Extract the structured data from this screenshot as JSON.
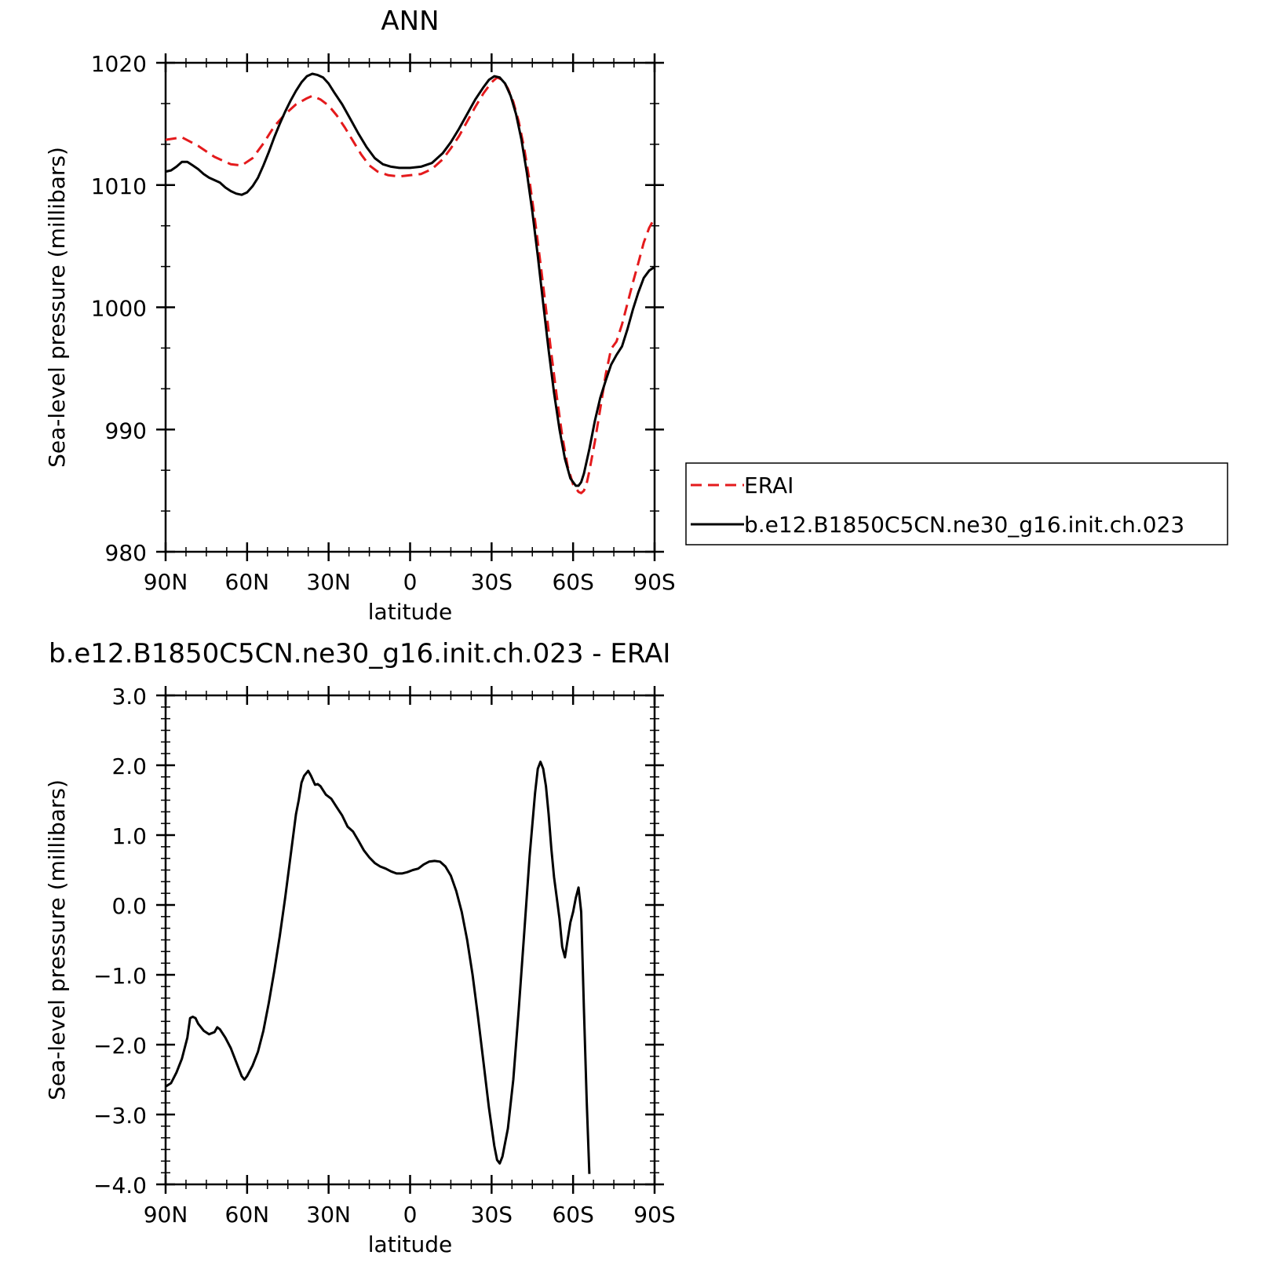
{
  "chart_data": [
    {
      "type": "line",
      "title": "ANN",
      "xlabel": "latitude",
      "ylabel": "Sea-level pressure (millibars)",
      "xlim": [
        90,
        -90
      ],
      "ylim": [
        980,
        1020
      ],
      "x_ticks": [
        {
          "value": 90,
          "label": "90N"
        },
        {
          "value": 60,
          "label": "60N"
        },
        {
          "value": 30,
          "label": "30N"
        },
        {
          "value": 0,
          "label": "0"
        },
        {
          "value": -30,
          "label": "30S"
        },
        {
          "value": -60,
          "label": "60S"
        },
        {
          "value": -90,
          "label": "90S"
        }
      ],
      "y_ticks": [
        {
          "value": 980,
          "label": "980"
        },
        {
          "value": 990,
          "label": "990"
        },
        {
          "value": 1000,
          "label": "1000"
        },
        {
          "value": 1010,
          "label": "1010"
        },
        {
          "value": 1020,
          "label": "1020"
        }
      ],
      "legend_position": "right",
      "series": [
        {
          "name": "ERAI",
          "color": "#e41a1c",
          "dash": true,
          "points": [
            [
              90,
              1013.7
            ],
            [
              84,
              1013.9
            ],
            [
              78,
              1013.2
            ],
            [
              72,
              1012.3
            ],
            [
              66,
              1011.7
            ],
            [
              62,
              1011.6
            ],
            [
              58,
              1012.2
            ],
            [
              54,
              1013.4
            ],
            [
              50,
              1014.8
            ],
            [
              46,
              1015.8
            ],
            [
              42,
              1016.6
            ],
            [
              38,
              1017.1
            ],
            [
              36,
              1017.3
            ],
            [
              33,
              1017.0
            ],
            [
              30,
              1016.5
            ],
            [
              27,
              1015.7
            ],
            [
              24,
              1014.7
            ],
            [
              21,
              1013.6
            ],
            [
              18,
              1012.5
            ],
            [
              15,
              1011.6
            ],
            [
              12,
              1011.1
            ],
            [
              8,
              1010.8
            ],
            [
              4,
              1010.7
            ],
            [
              0,
              1010.8
            ],
            [
              -4,
              1010.9
            ],
            [
              -8,
              1011.3
            ],
            [
              -12,
              1012.1
            ],
            [
              -15,
              1013.0
            ],
            [
              -18,
              1014.0
            ],
            [
              -21,
              1015.2
            ],
            [
              -24,
              1016.4
            ],
            [
              -27,
              1017.5
            ],
            [
              -30,
              1018.4
            ],
            [
              -32,
              1018.8
            ],
            [
              -34,
              1018.6
            ],
            [
              -36,
              1017.9
            ],
            [
              -38,
              1016.8
            ],
            [
              -40,
              1015.2
            ],
            [
              -42,
              1013.0
            ],
            [
              -44,
              1010.3
            ],
            [
              -46,
              1007.1
            ],
            [
              -48,
              1003.6
            ],
            [
              -50,
              999.9
            ],
            [
              -52,
              996.2
            ],
            [
              -54,
              992.7
            ],
            [
              -56,
              989.5
            ],
            [
              -58,
              987.0
            ],
            [
              -60,
              985.5
            ],
            [
              -62,
              984.9
            ],
            [
              -63,
              984.8
            ],
            [
              -64,
              985.0
            ],
            [
              -65,
              985.6
            ],
            [
              -66,
              986.6
            ],
            [
              -68,
              989.0
            ],
            [
              -70,
              991.7
            ],
            [
              -72,
              994.5
            ],
            [
              -74,
              996.6
            ],
            [
              -76,
              997.2
            ],
            [
              -78,
              998.6
            ],
            [
              -80,
              1000.3
            ],
            [
              -82,
              1002.0
            ],
            [
              -84,
              1003.6
            ],
            [
              -86,
              1005.3
            ],
            [
              -88,
              1006.5
            ],
            [
              -90,
              1007.3
            ]
          ]
        },
        {
          "name": "b.e12.B1850C5CN.ne30_g16.init.ch.023",
          "color": "#000000",
          "dash": false,
          "points": [
            [
              90,
              1011.1
            ],
            [
              88,
              1011.2
            ],
            [
              86,
              1011.5
            ],
            [
              84,
              1011.9
            ],
            [
              82,
              1011.9
            ],
            [
              80,
              1011.6
            ],
            [
              78,
              1011.3
            ],
            [
              76,
              1010.9
            ],
            [
              74,
              1010.6
            ],
            [
              72,
              1010.4
            ],
            [
              70,
              1010.2
            ],
            [
              68,
              1009.8
            ],
            [
              66,
              1009.5
            ],
            [
              64,
              1009.3
            ],
            [
              62,
              1009.2
            ],
            [
              60,
              1009.4
            ],
            [
              58,
              1009.9
            ],
            [
              56,
              1010.6
            ],
            [
              54,
              1011.6
            ],
            [
              52,
              1012.7
            ],
            [
              50,
              1013.9
            ],
            [
              48,
              1015.0
            ],
            [
              46,
              1016.0
            ],
            [
              44,
              1016.9
            ],
            [
              42,
              1017.7
            ],
            [
              40,
              1018.4
            ],
            [
              38,
              1018.9
            ],
            [
              36,
              1019.1
            ],
            [
              34,
              1019.0
            ],
            [
              32,
              1018.8
            ],
            [
              30,
              1018.3
            ],
            [
              28,
              1017.6
            ],
            [
              25,
              1016.6
            ],
            [
              22,
              1015.4
            ],
            [
              19,
              1014.2
            ],
            [
              16,
              1013.1
            ],
            [
              13,
              1012.2
            ],
            [
              10,
              1011.7
            ],
            [
              7,
              1011.5
            ],
            [
              4,
              1011.4
            ],
            [
              0,
              1011.4
            ],
            [
              -4,
              1011.5
            ],
            [
              -8,
              1011.8
            ],
            [
              -12,
              1012.6
            ],
            [
              -15,
              1013.5
            ],
            [
              -18,
              1014.6
            ],
            [
              -21,
              1015.8
            ],
            [
              -24,
              1017.0
            ],
            [
              -27,
              1018.0
            ],
            [
              -29,
              1018.6
            ],
            [
              -31,
              1018.9
            ],
            [
              -33,
              1018.8
            ],
            [
              -35,
              1018.3
            ],
            [
              -37,
              1017.3
            ],
            [
              -39,
              1015.8
            ],
            [
              -41,
              1013.7
            ],
            [
              -43,
              1011.0
            ],
            [
              -45,
              1007.8
            ],
            [
              -47,
              1004.2
            ],
            [
              -49,
              1000.3
            ],
            [
              -51,
              996.5
            ],
            [
              -53,
              993.0
            ],
            [
              -55,
              990.0
            ],
            [
              -57,
              987.6
            ],
            [
              -59,
              986.0
            ],
            [
              -61,
              985.4
            ],
            [
              -62,
              985.4
            ],
            [
              -63,
              985.7
            ],
            [
              -64,
              986.4
            ],
            [
              -66,
              988.4
            ],
            [
              -68,
              990.7
            ],
            [
              -70,
              992.6
            ],
            [
              -72,
              994.0
            ],
            [
              -74,
              995.3
            ],
            [
              -76,
              996.1
            ],
            [
              -78,
              996.8
            ],
            [
              -80,
              998.2
            ],
            [
              -82,
              999.8
            ],
            [
              -84,
              1001.2
            ],
            [
              -86,
              1002.4
            ],
            [
              -88,
              1003.0
            ],
            [
              -90,
              1003.3
            ]
          ]
        }
      ]
    },
    {
      "type": "line",
      "title": "b.e12.B1850C5CN.ne30_g16.init.ch.023  -  ERAI",
      "xlabel": "latitude",
      "ylabel": "Sea-level pressure (millibars)",
      "xlim": [
        90,
        -90
      ],
      "ylim": [
        -4.0,
        3.0
      ],
      "x_ticks": [
        {
          "value": 90,
          "label": "90N"
        },
        {
          "value": 60,
          "label": "60N"
        },
        {
          "value": 30,
          "label": "30N"
        },
        {
          "value": 0,
          "label": "0"
        },
        {
          "value": -30,
          "label": "30S"
        },
        {
          "value": -60,
          "label": "60S"
        },
        {
          "value": -90,
          "label": "90S"
        }
      ],
      "y_ticks": [
        {
          "value": -4.0,
          "label": "-4.0"
        },
        {
          "value": -3.0,
          "label": "-3.0"
        },
        {
          "value": -2.0,
          "label": "-2.0"
        },
        {
          "value": -1.0,
          "label": "-1.0"
        },
        {
          "value": 0.0,
          "label": "0.0"
        },
        {
          "value": 1.0,
          "label": "1.0"
        },
        {
          "value": 2.0,
          "label": "2.0"
        },
        {
          "value": 3.0,
          "label": "3.0"
        }
      ],
      "series": [
        {
          "color": "#000000",
          "dash": false,
          "points": [
            [
              90,
              -2.6
            ],
            [
              88,
              -2.55
            ],
            [
              86,
              -2.4
            ],
            [
              84,
              -2.2
            ],
            [
              82,
              -1.9
            ],
            [
              81,
              -1.62
            ],
            [
              80,
              -1.6
            ],
            [
              79,
              -1.62
            ],
            [
              78,
              -1.7
            ],
            [
              76,
              -1.8
            ],
            [
              74,
              -1.85
            ],
            [
              72,
              -1.82
            ],
            [
              71,
              -1.75
            ],
            [
              70,
              -1.78
            ],
            [
              68,
              -1.9
            ],
            [
              66,
              -2.05
            ],
            [
              64,
              -2.25
            ],
            [
              62,
              -2.45
            ],
            [
              61,
              -2.5
            ],
            [
              60,
              -2.45
            ],
            [
              58,
              -2.3
            ],
            [
              56,
              -2.1
            ],
            [
              54,
              -1.8
            ],
            [
              52,
              -1.4
            ],
            [
              50,
              -0.95
            ],
            [
              48,
              -0.45
            ],
            [
              46,
              0.1
            ],
            [
              44,
              0.7
            ],
            [
              42,
              1.3
            ],
            [
              41,
              1.5
            ],
            [
              40,
              1.75
            ],
            [
              39,
              1.85
            ],
            [
              37.5,
              1.92
            ],
            [
              36.5,
              1.85
            ],
            [
              35,
              1.72
            ],
            [
              34,
              1.73
            ],
            [
              33,
              1.7
            ],
            [
              31,
              1.58
            ],
            [
              29,
              1.52
            ],
            [
              27,
              1.4
            ],
            [
              25,
              1.28
            ],
            [
              23,
              1.12
            ],
            [
              21,
              1.05
            ],
            [
              19,
              0.92
            ],
            [
              17,
              0.78
            ],
            [
              15,
              0.68
            ],
            [
              13,
              0.6
            ],
            [
              11,
              0.55
            ],
            [
              9,
              0.52
            ],
            [
              7,
              0.48
            ],
            [
              5,
              0.45
            ],
            [
              3,
              0.45
            ],
            [
              1,
              0.47
            ],
            [
              -1,
              0.5
            ],
            [
              -3,
              0.52
            ],
            [
              -5,
              0.58
            ],
            [
              -7,
              0.62
            ],
            [
              -9,
              0.63
            ],
            [
              -11,
              0.62
            ],
            [
              -13,
              0.55
            ],
            [
              -15,
              0.42
            ],
            [
              -17,
              0.2
            ],
            [
              -19,
              -0.1
            ],
            [
              -21,
              -0.5
            ],
            [
              -23,
              -1.0
            ],
            [
              -25,
              -1.6
            ],
            [
              -27,
              -2.25
            ],
            [
              -29,
              -2.9
            ],
            [
              -31,
              -3.45
            ],
            [
              -32,
              -3.65
            ],
            [
              -33,
              -3.7
            ],
            [
              -34,
              -3.6
            ],
            [
              -36,
              -3.2
            ],
            [
              -38,
              -2.5
            ],
            [
              -40,
              -1.5
            ],
            [
              -42,
              -0.4
            ],
            [
              -44,
              0.7
            ],
            [
              -46,
              1.6
            ],
            [
              -47,
              1.95
            ],
            [
              -48,
              2.05
            ],
            [
              -49,
              1.95
            ],
            [
              -50,
              1.7
            ],
            [
              -51,
              1.3
            ],
            [
              -52,
              0.8
            ],
            [
              -53,
              0.4
            ],
            [
              -54,
              0.1
            ],
            [
              -55,
              -0.2
            ],
            [
              -56,
              -0.6
            ],
            [
              -57,
              -0.75
            ],
            [
              -58,
              -0.5
            ],
            [
              -59,
              -0.25
            ],
            [
              -60,
              -0.1
            ],
            [
              -61,
              0.1
            ],
            [
              -62,
              0.25
            ],
            [
              -63,
              -0.1
            ],
            [
              -64,
              -1.5
            ],
            [
              -65,
              -2.8
            ],
            [
              -66,
              -3.85
            ]
          ]
        }
      ]
    }
  ]
}
